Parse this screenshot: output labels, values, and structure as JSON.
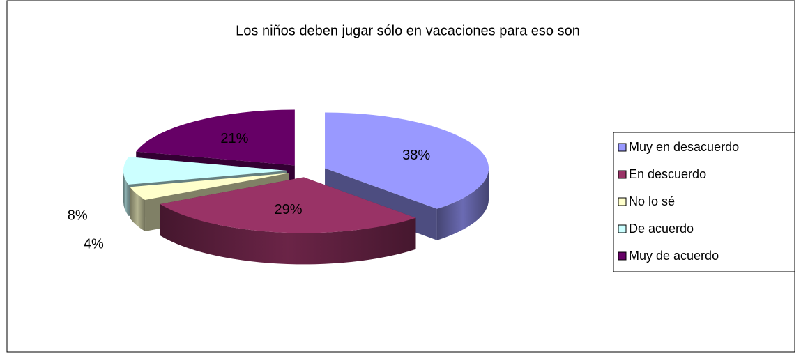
{
  "chart_data": {
    "type": "pie",
    "title": "Los niños deben jugar sólo en vacaciones para eso son",
    "categories": [
      "Muy en desacuerdo",
      "En descuerdo",
      "No lo sé",
      "De acuerdo",
      "Muy de acuerdo"
    ],
    "values": [
      38,
      29,
      4,
      8,
      21
    ],
    "value_labels": [
      "38%",
      "29%",
      "4%",
      "8%",
      "21%"
    ],
    "colors": [
      "#9999ff",
      "#993366",
      "#ffffcc",
      "#ccffff",
      "#660066"
    ],
    "legend": "right"
  }
}
